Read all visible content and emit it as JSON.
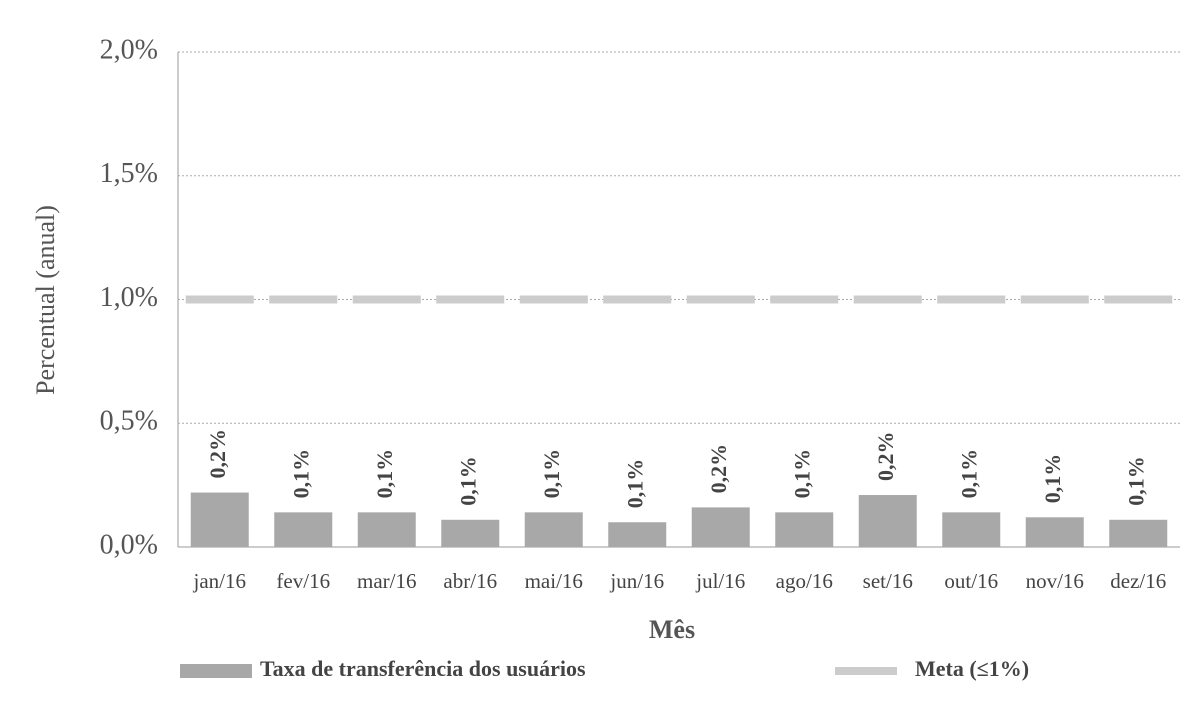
{
  "chart_data": {
    "type": "bar",
    "y_label": "Percentual (anual)",
    "x_label": "Mês",
    "categories": [
      "jan/16",
      "fev/16",
      "mar/16",
      "abr/16",
      "mai/16",
      "jun/16",
      "jul/16",
      "ago/16",
      "set/16",
      "out/16",
      "nov/16",
      "dez/16"
    ],
    "series": [
      {
        "name": "Taxa de transferência dos usuários",
        "color": "#a8a8a8",
        "values": [
          0.22,
          0.14,
          0.14,
          0.11,
          0.14,
          0.1,
          0.16,
          0.14,
          0.21,
          0.14,
          0.12,
          0.11
        ],
        "value_labels": [
          "0,2%",
          "0,1%",
          "0,1%",
          "0,1%",
          "0,1%",
          "0,1%",
          "0,2%",
          "0,1%",
          "0,2%",
          "0,1%",
          "0,1%",
          "0,1%"
        ]
      },
      {
        "name": "Meta (≤1%)",
        "color": "#cccccc",
        "type": "line",
        "dashed": true,
        "values": [
          1.0,
          1.0,
          1.0,
          1.0,
          1.0,
          1.0,
          1.0,
          1.0,
          1.0,
          1.0,
          1.0,
          1.0
        ]
      }
    ],
    "ylim": [
      0,
      2.0
    ],
    "yticks": [
      {
        "value": 0,
        "label": "0,0%"
      },
      {
        "value": 0.5,
        "label": "0,5%"
      },
      {
        "value": 1.0,
        "label": "1,0%"
      },
      {
        "value": 1.5,
        "label": "1,5%"
      },
      {
        "value": 2.0,
        "label": "2,0%"
      }
    ],
    "grid": true,
    "legend": "bottom"
  }
}
